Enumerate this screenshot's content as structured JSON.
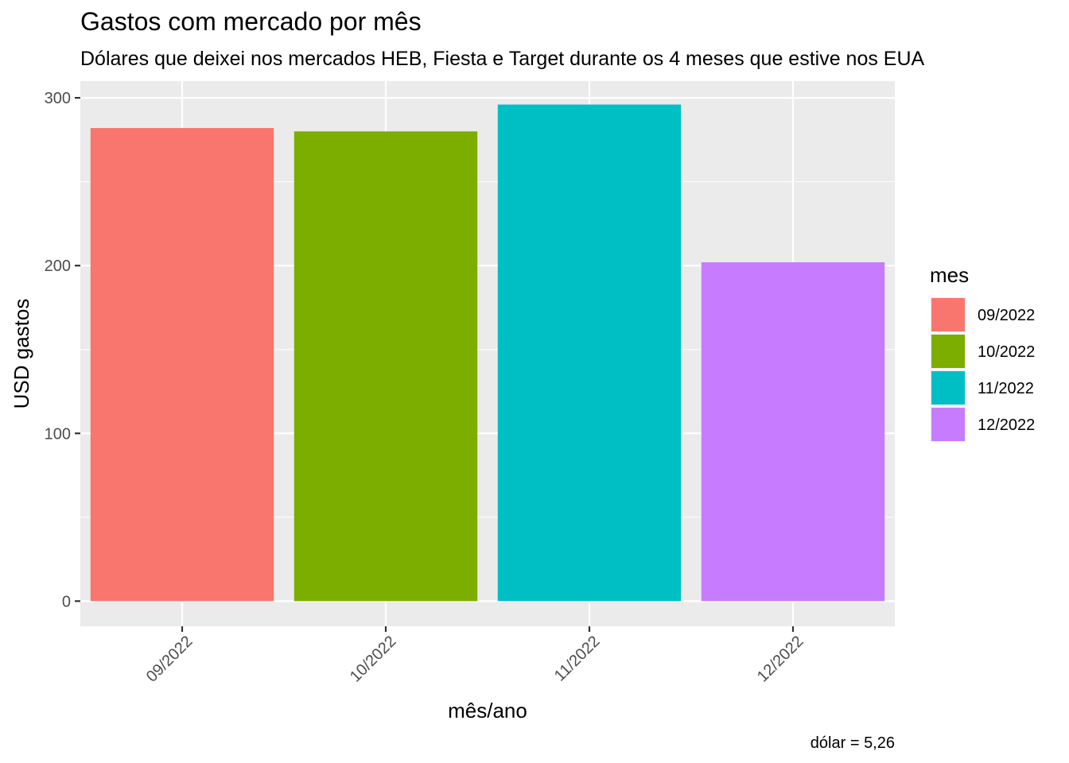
{
  "chart_data": {
    "type": "bar",
    "title": "Gastos com mercado por mês",
    "subtitle": "Dólares que deixei nos mercados HEB, Fiesta e Target durante os 4 meses que estive nos EUA",
    "xlabel": "mês/ano",
    "ylabel": "USD gastos",
    "caption": "dólar = 5,26",
    "categories": [
      "09/2022",
      "10/2022",
      "11/2022",
      "12/2022"
    ],
    "values": [
      282,
      280,
      296,
      202
    ],
    "colors": [
      "#F8766D",
      "#7CAE00",
      "#00BFC4",
      "#C77CFF"
    ],
    "ylim": [
      -15,
      310
    ],
    "yticks": [
      0,
      100,
      200,
      300
    ],
    "grid": true,
    "legend": {
      "title": "mes",
      "placement": "right",
      "entries": [
        "09/2022",
        "10/2022",
        "11/2022",
        "12/2022"
      ]
    }
  }
}
